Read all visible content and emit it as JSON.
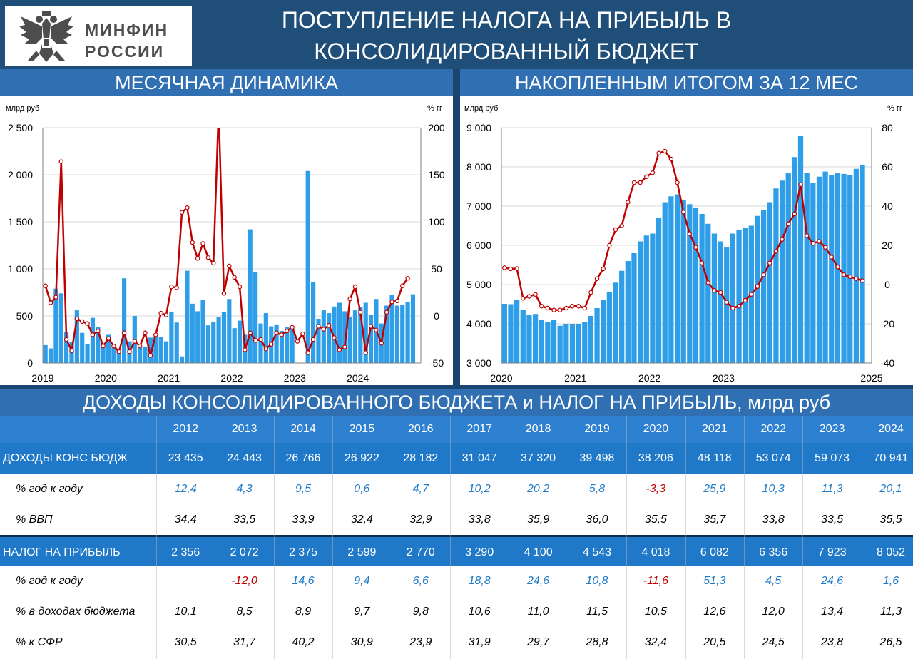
{
  "header": {
    "logo_text": [
      "МИНФИН",
      "РОССИИ"
    ],
    "title": [
      "ПОСТУПЛЕНИЕ НАЛОГА НА ПРИБЫЛЬ В",
      "КОНСОЛИДИРОВАННЫЙ БЮДЖЕТ"
    ]
  },
  "left_chart_title": "МЕСЯЧНАЯ ДИНАМИКА",
  "right_chart_title": "НАКОПЛЕННЫМ ИТОГОМ ЗА 12 МЕС",
  "table_title": "ДОХОДЫ КОНСОЛИДИРОВАННОГО БЮДЖЕТА и НАЛОГ НА ПРИБЫЛЬ, млрд руб",
  "colors": {
    "bar": "#2e9ee8",
    "line": "#c00000",
    "header": "#1f4e79",
    "blue_text": "#1f7ac8",
    "red_text": "#c00000"
  },
  "chart_data": [
    {
      "type": "bar+line",
      "title": "МЕСЯЧНАЯ ДИНАМИКА",
      "ylabel_left": "млрд руб",
      "ylabel_right": "% гг",
      "ylim_left": [
        0,
        2500
      ],
      "ylim_right": [
        -50,
        200
      ],
      "yticks_left": [
        "0",
        "500",
        "1 000",
        "1 500",
        "2 000",
        "2 500"
      ],
      "yticks_right": [
        "-50",
        "0",
        "50",
        "100",
        "150",
        "200"
      ],
      "x_labels": [
        "2019",
        "2020",
        "2021",
        "2022",
        "2023",
        "2024"
      ],
      "bars": [
        190,
        155,
        790,
        740,
        330,
        220,
        560,
        320,
        200,
        480,
        380,
        210,
        300,
        165,
        130,
        900,
        230,
        500,
        170,
        175,
        270,
        290,
        280,
        230,
        540,
        430,
        70,
        980,
        630,
        550,
        670,
        400,
        440,
        490,
        540,
        680,
        370,
        450,
        300,
        1420,
        970,
        420,
        530,
        390,
        410,
        340,
        380,
        370,
        2040,
        860,
        470,
        560,
        530,
        600,
        640,
        550,
        490,
        560,
        590,
        640,
        510,
        680,
        420,
        610,
        720,
        610,
        620,
        650,
        730
      ],
      "bar_start_month": "2019-01",
      "bar_missing_months": [
        "2023-01",
        "2023-02"
      ],
      "line": [
        32,
        14,
        20,
        164,
        -25,
        -37,
        -3,
        -6,
        -8,
        -20,
        -16,
        -32,
        -24,
        -32,
        -38,
        -18,
        -38,
        -27,
        -32,
        -18,
        -42,
        -20,
        3,
        1,
        31,
        30,
        110,
        115,
        78,
        61,
        77,
        62,
        56,
        220,
        24,
        53,
        41,
        31,
        -36,
        -18,
        -26,
        -25,
        -35,
        -30,
        -18,
        -20,
        -16,
        -12,
        -27,
        -19,
        -39,
        -25,
        -11,
        -14,
        -10,
        -23,
        -36,
        -33,
        18,
        31,
        4,
        -39,
        -11,
        -15,
        -29,
        4,
        15,
        16,
        32,
        40
      ],
      "line_start_month": "2019-01"
    },
    {
      "type": "bar+line",
      "title": "НАКОПЛЕННЫМ ИТОГОМ ЗА 12 МЕС",
      "ylabel_left": "млрд руб",
      "ylabel_right": "% гг",
      "ylim_left": [
        3000,
        9000
      ],
      "ylim_right": [
        -40,
        80
      ],
      "yticks_left": [
        "3 000",
        "4 000",
        "5 000",
        "6 000",
        "7 000",
        "8 000",
        "9 000"
      ],
      "yticks_right": [
        "-40",
        "-20",
        "0",
        "20",
        "40",
        "60",
        "80"
      ],
      "x_labels": [
        "2020",
        "2021",
        "2022",
        "2023",
        "2025"
      ],
      "bars": [
        4510,
        4500,
        4600,
        4350,
        4230,
        4250,
        4100,
        4050,
        4100,
        3950,
        4000,
        4000,
        4000,
        4050,
        4200,
        4400,
        4600,
        4800,
        5050,
        5350,
        5600,
        5800,
        6100,
        6250,
        6300,
        6700,
        7100,
        7250,
        7300,
        7150,
        7050,
        6950,
        6800,
        6550,
        6300,
        6100,
        5950,
        6300,
        6400,
        6450,
        6500,
        6750,
        6900,
        7100,
        7450,
        7650,
        7850,
        8250,
        8800,
        7850,
        7600,
        7750,
        7880,
        7800,
        7850,
        7820,
        7800,
        7950,
        8052
      ],
      "bar_start_month": "2020-01",
      "line": [
        8.6,
        8.0,
        8.2,
        -7,
        -6,
        -5,
        -11,
        -12,
        -13,
        -13,
        -12,
        -11,
        -11,
        -12,
        -4,
        3,
        8,
        20,
        28,
        30,
        42,
        52,
        52,
        55,
        57,
        67,
        68,
        64,
        52,
        37,
        26,
        19,
        11,
        1,
        -3,
        -4,
        -9,
        -12,
        -11,
        -8,
        -5,
        -1,
        5,
        11,
        17,
        23,
        31,
        36,
        51,
        25,
        21,
        22,
        19,
        14,
        9,
        5,
        4,
        3,
        2
      ],
      "line_start_month": "2020-01"
    },
    {
      "type": "table",
      "title": "ДОХОДЫ КОНСОЛИДИРОВАННОГО БЮДЖЕТА и НАЛОГ НА ПРИБЫЛЬ, млрд руб",
      "years": [
        "2012",
        "2013",
        "2014",
        "2015",
        "2016",
        "2017",
        "2018",
        "2019",
        "2020",
        "2021",
        "2022",
        "2023",
        "2024"
      ],
      "rows": [
        {
          "label": "ДОХОДЫ КОНС БЮДЖ",
          "style": "header",
          "values": [
            "23 435",
            "24 443",
            "26 766",
            "26 922",
            "28 182",
            "31 047",
            "37 320",
            "39 498",
            "38 206",
            "48 118",
            "53 074",
            "59 073",
            "70 941"
          ]
        },
        {
          "label": "% год к году",
          "style": "growth",
          "values": [
            "12,4",
            "4,3",
            "9,5",
            "0,6",
            "4,7",
            "10,2",
            "20,2",
            "5,8",
            "-3,3",
            "25,9",
            "10,3",
            "11,3",
            "20,1"
          ]
        },
        {
          "label": "% ВВП",
          "style": "plain",
          "values": [
            "34,4",
            "33,5",
            "33,9",
            "32,4",
            "32,9",
            "33,8",
            "35,9",
            "36,0",
            "35,5",
            "35,7",
            "33,8",
            "33,5",
            "35,5"
          ]
        },
        {
          "label": "НАЛОГ НА ПРИБЫЛЬ",
          "style": "header",
          "values": [
            "2 356",
            "2 072",
            "2 375",
            "2 599",
            "2 770",
            "3 290",
            "4 100",
            "4 543",
            "4 018",
            "6 082",
            "6 356",
            "7 923",
            "8 052"
          ]
        },
        {
          "label": "% год к году",
          "style": "growth",
          "values": [
            "",
            "-12,0",
            "14,6",
            "9,4",
            "6,6",
            "18,8",
            "24,6",
            "10,8",
            "-11,6",
            "51,3",
            "4,5",
            "24,6",
            "1,6"
          ]
        },
        {
          "label": "% в доходах бюджета",
          "style": "plain",
          "values": [
            "10,1",
            "8,5",
            "8,9",
            "9,7",
            "9,8",
            "10,6",
            "11,0",
            "11,5",
            "10,5",
            "12,6",
            "12,0",
            "13,4",
            "11,3"
          ]
        },
        {
          "label": "% к СФР",
          "style": "plain",
          "values": [
            "30,5",
            "31,7",
            "40,2",
            "30,9",
            "23,9",
            "31,9",
            "29,7",
            "28,8",
            "32,4",
            "20,5",
            "24,5",
            "23,8",
            "26,5"
          ]
        }
      ]
    }
  ]
}
